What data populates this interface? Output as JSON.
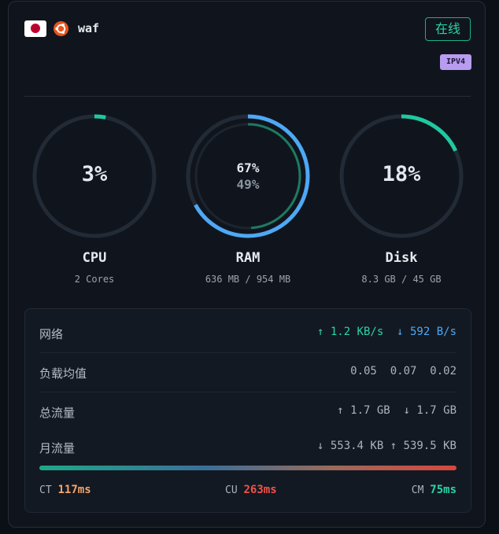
{
  "server": {
    "name": "waf",
    "status": "在线",
    "ip_badge": "IPV4",
    "flag_icon": "japan-flag",
    "os_icon": "ubuntu-icon"
  },
  "gauges": {
    "cpu": {
      "label": "CPU",
      "value_text": "3%",
      "percent": 3,
      "sub": "2 Cores",
      "color": "#1fc9a0"
    },
    "ram": {
      "label": "RAM",
      "value_text": "67%",
      "value2_text": "49%",
      "percent": 67,
      "percent2": 49,
      "sub": "636 MB / 954 MB",
      "color": "#4ea8f5",
      "color2": "#1d7a62"
    },
    "disk": {
      "label": "Disk",
      "value_text": "18%",
      "percent": 18,
      "sub": "8.3 GB / 45 GB",
      "color": "#1fc9a0"
    }
  },
  "stats": {
    "network": {
      "label": "网络",
      "up": "↑ 1.2 KB/s",
      "down": "↓ 592 B/s"
    },
    "load": {
      "label": "负载均值",
      "values": "0.05  0.07  0.02"
    },
    "total_traffic": {
      "label": "总流量",
      "values": "↑ 1.7 GB  ↓ 1.7 GB"
    },
    "monthly_traffic": {
      "label": "月流量",
      "values": "↓ 553.4 KB ↑ 539.5 KB"
    }
  },
  "latency": {
    "ct": {
      "label": "CT",
      "value": "117ms",
      "color": "#f5a46a"
    },
    "cu": {
      "label": "CU",
      "value": "263ms",
      "color": "#f0524b"
    },
    "cm": {
      "label": "CM",
      "value": "75ms",
      "color": "#2bd3a7"
    }
  }
}
